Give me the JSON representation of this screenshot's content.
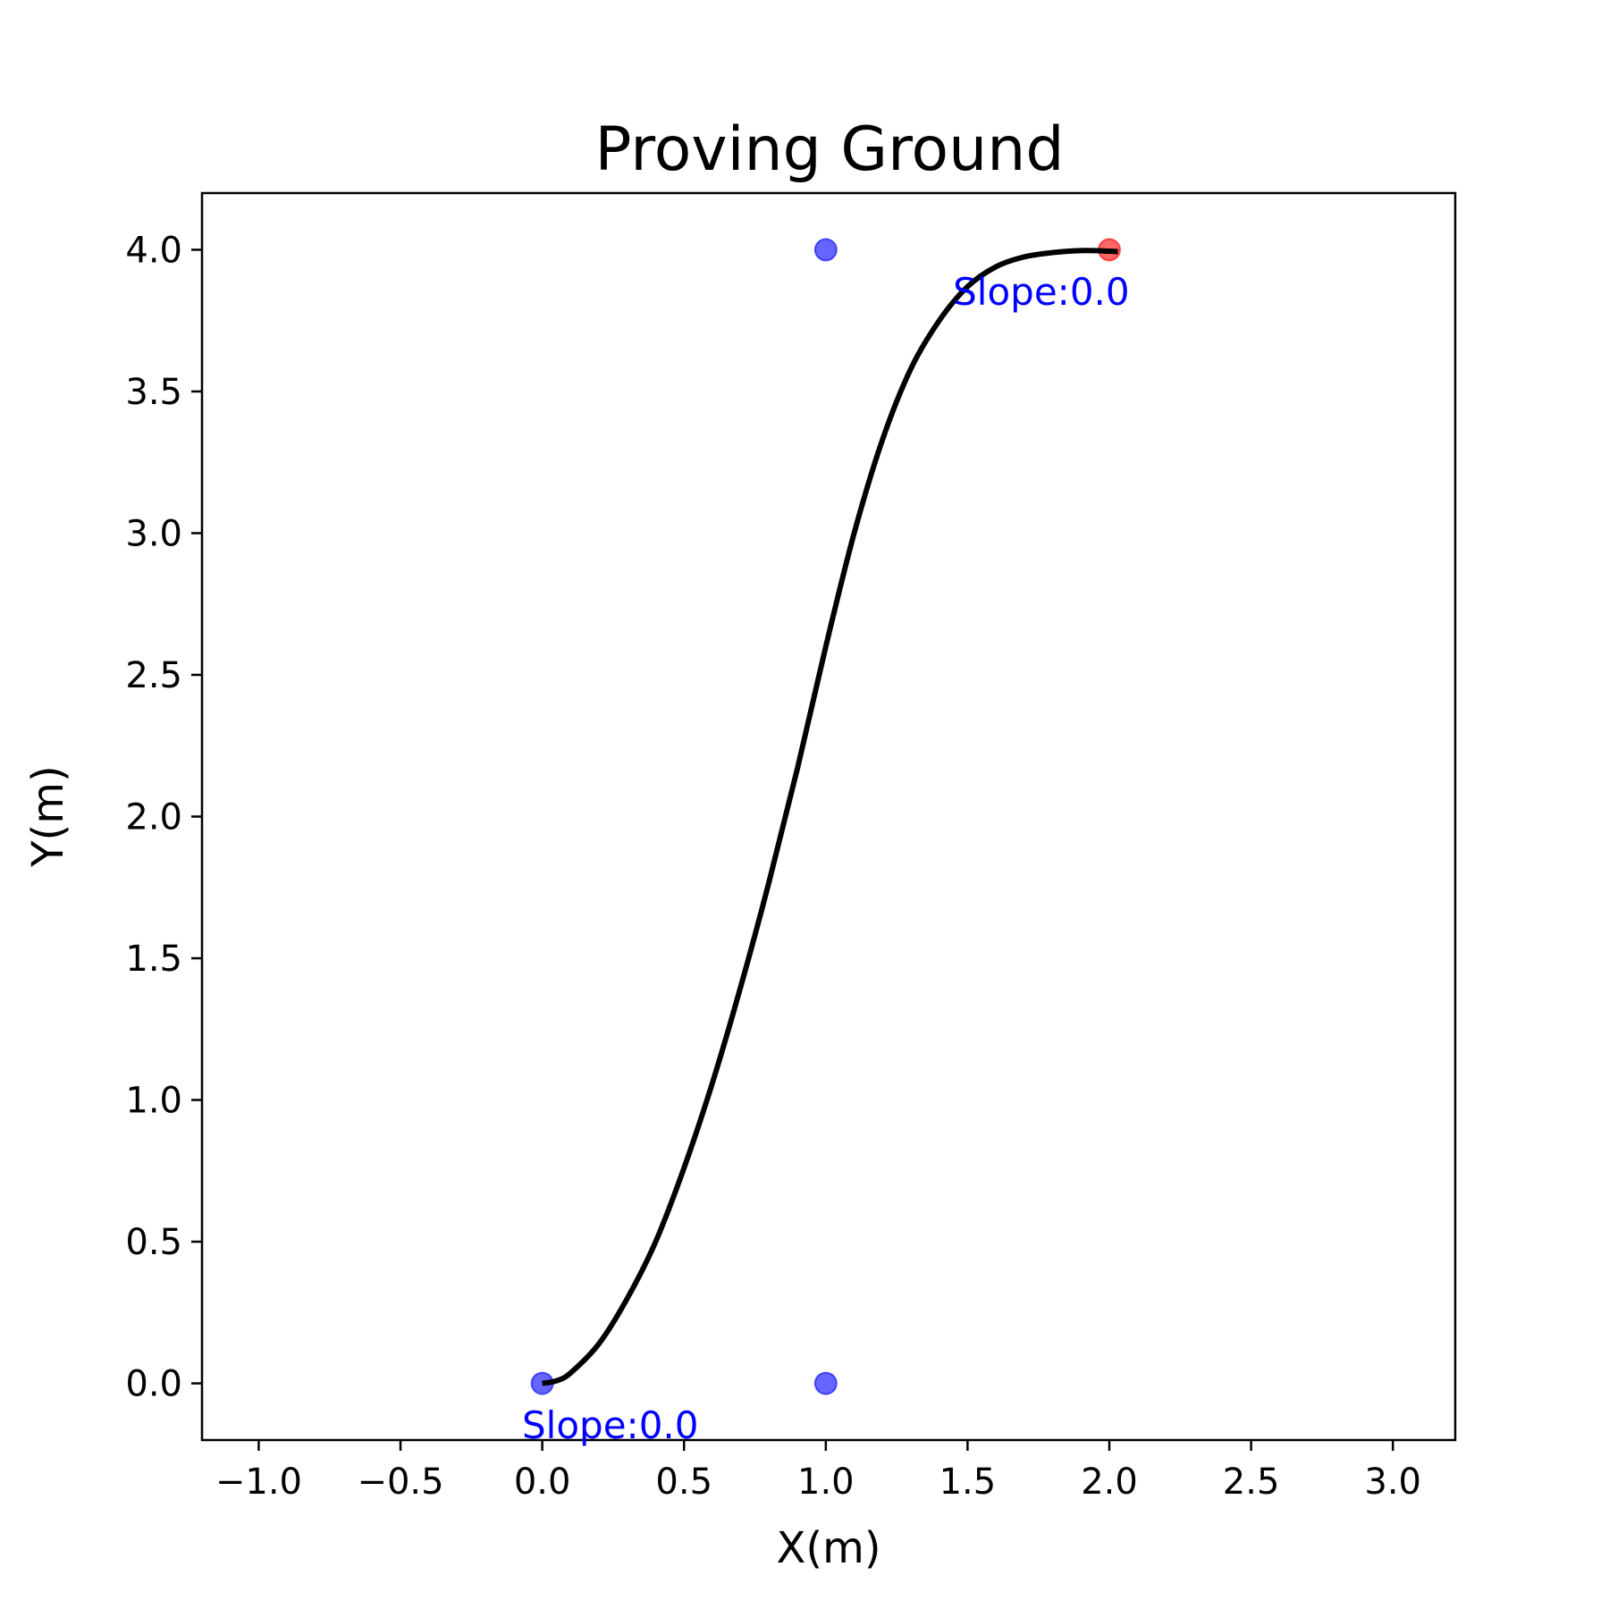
{
  "chart_data": {
    "type": "line",
    "title": "Proving Ground",
    "xlabel": "X(m)",
    "ylabel": "Y(m)",
    "xlim": [
      -1.2,
      3.22
    ],
    "ylim": [
      -0.2,
      4.2
    ],
    "xticks": [
      -1.0,
      -0.5,
      0.0,
      0.5,
      1.0,
      1.5,
      2.0,
      2.5,
      3.0
    ],
    "xtick_labels": [
      "−1.0",
      "−0.5",
      "0.0",
      "0.5",
      "1.0",
      "1.5",
      "2.0",
      "2.5",
      "3.0"
    ],
    "yticks": [
      0.0,
      0.5,
      1.0,
      1.5,
      2.0,
      2.5,
      3.0,
      3.5,
      4.0
    ],
    "ytick_labels": [
      "0.0",
      "0.5",
      "1.0",
      "1.5",
      "2.0",
      "2.5",
      "3.0",
      "3.5",
      "4.0"
    ],
    "grid": false,
    "series": [
      {
        "kind": "curve",
        "color": "#000000",
        "x": [
          0.0,
          0.05,
          0.1,
          0.2,
          0.3,
          0.4,
          0.5,
          0.6,
          0.7,
          0.8,
          0.9,
          1.0,
          1.1,
          1.2,
          1.3,
          1.4,
          1.5,
          1.6,
          1.7,
          1.8,
          1.9,
          2.0,
          2.03
        ],
        "y": [
          0.0,
          0.009,
          0.037,
          0.14,
          0.3,
          0.5,
          0.76,
          1.06,
          1.4,
          1.77,
          2.17,
          2.6,
          3.0,
          3.33,
          3.58,
          3.75,
          3.87,
          3.94,
          3.975,
          3.99,
          3.997,
          3.995,
          3.993
        ]
      },
      {
        "kind": "points",
        "color": "#0000ff",
        "points": [
          {
            "x": 0.0,
            "y": 0.0
          },
          {
            "x": 1.0,
            "y": 0.0
          },
          {
            "x": 1.0,
            "y": 4.0
          }
        ]
      },
      {
        "kind": "points",
        "color": "#ff0000",
        "points": [
          {
            "x": 2.0,
            "y": 4.0
          }
        ]
      }
    ],
    "annotations": [
      {
        "text": "Slope:0.0",
        "x": 0.24,
        "y": -0.15,
        "color": "#0000ff"
      },
      {
        "text": "Slope:0.0",
        "x": 1.76,
        "y": 3.85,
        "color": "#0000ff"
      }
    ]
  }
}
